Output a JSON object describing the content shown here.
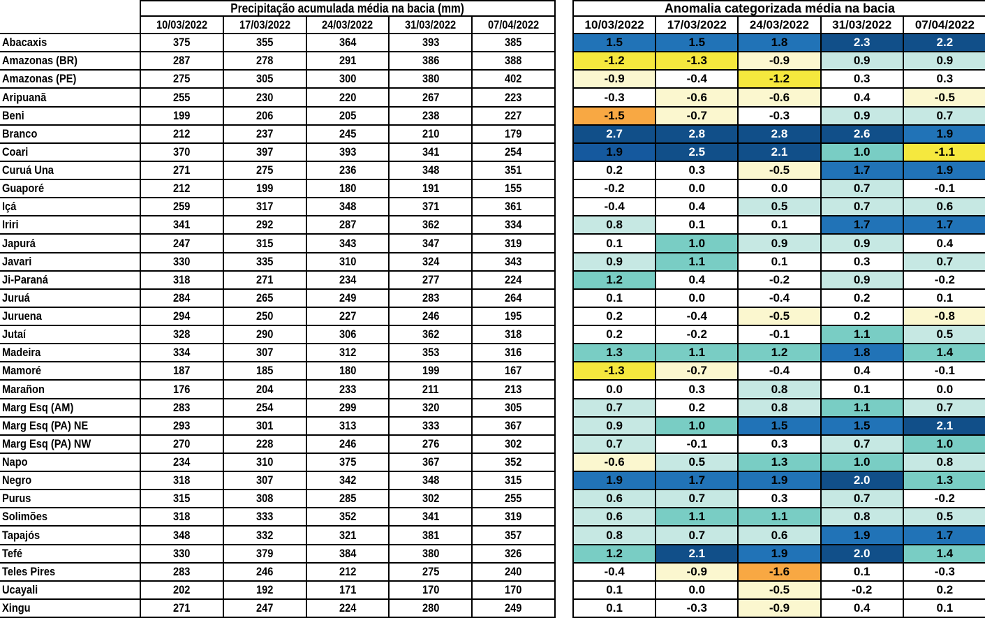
{
  "chart_data": [
    {
      "type": "table",
      "title": "Precipitação acumulada média na bacia (mm)",
      "unit": "mm",
      "columns": [
        "10/03/2022",
        "17/03/2022",
        "24/03/2022",
        "31/03/2022",
        "07/04/2022"
      ],
      "row_labels": [
        "Abacaxis",
        "Amazonas (BR)",
        "Amazonas (PE)",
        "Aripuanã",
        "Beni",
        "Branco",
        "Coari",
        "Curuá Una",
        "Guaporé",
        "Içá",
        "Iriri",
        "Japurá",
        "Javari",
        "Ji-Paraná",
        "Juruá",
        "Juruena",
        "Jutaí",
        "Madeira",
        "Mamoré",
        "Marañon",
        "Marg Esq (AM)",
        "Marg Esq (PA) NE",
        "Marg Esq (PA) NW",
        "Napo",
        "Negro",
        "Purus",
        "Solimões",
        "Tapajós",
        "Tefé",
        "Teles Pires",
        "Ucayali",
        "Xingu"
      ],
      "values": [
        [
          375,
          355,
          364,
          393,
          385
        ],
        [
          287,
          278,
          291,
          386,
          388
        ],
        [
          275,
          305,
          300,
          380,
          402
        ],
        [
          255,
          230,
          220,
          267,
          223
        ],
        [
          199,
          206,
          205,
          238,
          227
        ],
        [
          212,
          237,
          245,
          210,
          179
        ],
        [
          370,
          397,
          393,
          341,
          254
        ],
        [
          271,
          275,
          236,
          348,
          351
        ],
        [
          212,
          199,
          180,
          191,
          155
        ],
        [
          259,
          317,
          348,
          371,
          361
        ],
        [
          341,
          292,
          287,
          362,
          334
        ],
        [
          247,
          315,
          343,
          347,
          319
        ],
        [
          330,
          335,
          310,
          324,
          343
        ],
        [
          318,
          271,
          234,
          277,
          224
        ],
        [
          284,
          265,
          249,
          283,
          264
        ],
        [
          294,
          250,
          227,
          246,
          195
        ],
        [
          328,
          290,
          306,
          362,
          318
        ],
        [
          334,
          307,
          312,
          353,
          316
        ],
        [
          187,
          185,
          180,
          199,
          167
        ],
        [
          176,
          204,
          233,
          211,
          213
        ],
        [
          283,
          254,
          299,
          320,
          305
        ],
        [
          293,
          301,
          313,
          333,
          367
        ],
        [
          270,
          228,
          246,
          276,
          302
        ],
        [
          234,
          310,
          375,
          367,
          352
        ],
        [
          318,
          307,
          342,
          348,
          315
        ],
        [
          315,
          308,
          285,
          302,
          255
        ],
        [
          318,
          333,
          352,
          341,
          319
        ],
        [
          348,
          332,
          321,
          381,
          357
        ],
        [
          330,
          379,
          384,
          380,
          326
        ],
        [
          283,
          246,
          212,
          275,
          240
        ],
        [
          202,
          192,
          171,
          170,
          170
        ],
        [
          271,
          247,
          224,
          280,
          249
        ]
      ]
    },
    {
      "type": "heatmap",
      "title": "Anomalia categorizada média na bacia",
      "columns": [
        "10/03/2022",
        "17/03/2022",
        "24/03/2022",
        "31/03/2022",
        "07/04/2022"
      ],
      "row_labels": [
        "Abacaxis",
        "Amazonas (BR)",
        "Amazonas (PE)",
        "Aripuanã",
        "Beni",
        "Branco",
        "Coari",
        "Curuá Una",
        "Guaporé",
        "Içá",
        "Iriri",
        "Japurá",
        "Javari",
        "Ji-Paraná",
        "Juruá",
        "Juruena",
        "Jutaí",
        "Madeira",
        "Mamoré",
        "Marañon",
        "Marg Esq (AM)",
        "Marg Esq (PA) NE",
        "Marg Esq (PA) NW",
        "Napo",
        "Negro",
        "Purus",
        "Solimões",
        "Tapajós",
        "Tefé",
        "Teles Pires",
        "Ucayali",
        "Xingu"
      ],
      "values": [
        [
          "1.5",
          "1.5",
          "1.8",
          "2.3",
          "2.2"
        ],
        [
          "-1.2",
          "-1.3",
          "-0.9",
          "0.9",
          "0.9"
        ],
        [
          "-0.9",
          "-0.4",
          "-1.2",
          "0.3",
          "0.3"
        ],
        [
          "-0.3",
          "-0.6",
          "-0.6",
          "0.4",
          "-0.5"
        ],
        [
          "-1.5",
          "-0.7",
          "-0.3",
          "0.9",
          "0.7"
        ],
        [
          "2.7",
          "2.8",
          "2.8",
          "2.6",
          "1.9"
        ],
        [
          "1.9",
          "2.5",
          "2.1",
          "1.0",
          "-1.1"
        ],
        [
          "0.2",
          "0.3",
          "-0.5",
          "1.7",
          "1.9"
        ],
        [
          "-0.2",
          "0.0",
          "0.0",
          "0.7",
          "-0.1"
        ],
        [
          "-0.4",
          "0.4",
          "0.5",
          "0.7",
          "0.6"
        ],
        [
          "0.8",
          "0.1",
          "0.1",
          "1.7",
          "1.7"
        ],
        [
          "0.1",
          "1.0",
          "0.9",
          "0.9",
          "0.4"
        ],
        [
          "0.9",
          "1.1",
          "0.1",
          "0.3",
          "0.7"
        ],
        [
          "1.2",
          "0.4",
          "-0.2",
          "0.9",
          "-0.2"
        ],
        [
          "0.1",
          "0.0",
          "-0.4",
          "0.2",
          "0.1"
        ],
        [
          "0.2",
          "-0.4",
          "-0.5",
          "0.2",
          "-0.8"
        ],
        [
          "0.2",
          "-0.2",
          "-0.1",
          "1.1",
          "0.5"
        ],
        [
          "1.3",
          "1.1",
          "1.2",
          "1.8",
          "1.4"
        ],
        [
          "-1.3",
          "-0.7",
          "-0.4",
          "0.4",
          "-0.1"
        ],
        [
          "0.0",
          "0.3",
          "0.8",
          "0.1",
          "0.0"
        ],
        [
          "0.7",
          "0.2",
          "0.8",
          "1.1",
          "0.7"
        ],
        [
          "0.9",
          "1.0",
          "1.5",
          "1.5",
          "2.1"
        ],
        [
          "0.7",
          "-0.1",
          "0.3",
          "0.7",
          "1.0"
        ],
        [
          "-0.6",
          "0.5",
          "1.3",
          "1.0",
          "0.8"
        ],
        [
          "1.9",
          "1.7",
          "1.9",
          "2.0",
          "1.3"
        ],
        [
          "0.6",
          "0.7",
          "0.3",
          "0.7",
          "-0.2"
        ],
        [
          "0.6",
          "1.1",
          "1.1",
          "0.8",
          "0.5"
        ],
        [
          "0.8",
          "0.7",
          "0.6",
          "1.9",
          "1.7"
        ],
        [
          "1.2",
          "2.1",
          "1.9",
          "2.0",
          "1.4"
        ],
        [
          "-0.4",
          "-0.9",
          "-1.6",
          "0.1",
          "-0.3"
        ],
        [
          "0.1",
          "0.0",
          "-0.5",
          "-0.2",
          "0.2"
        ],
        [
          "0.1",
          "-0.3",
          "-0.9",
          "0.4",
          "0.1"
        ]
      ],
      "cell_classes": [
        [
          "b",
          "b",
          "b",
          "n",
          "n"
        ],
        [
          "y",
          "y",
          "py",
          "pt",
          "pt"
        ],
        [
          "py",
          "w",
          "y",
          "w",
          "w"
        ],
        [
          "w",
          "py",
          "py",
          "w",
          "py"
        ],
        [
          "o",
          "py",
          "w",
          "pt",
          "pt"
        ],
        [
          "n",
          "n",
          "n",
          "n",
          "b"
        ],
        [
          "db",
          "n",
          "n",
          "t",
          "y"
        ],
        [
          "w",
          "w",
          "py",
          "b",
          "b"
        ],
        [
          "w",
          "w",
          "w",
          "pt",
          "w"
        ],
        [
          "w",
          "w",
          "pt",
          "pt",
          "pt"
        ],
        [
          "pt",
          "w",
          "w",
          "b",
          "b"
        ],
        [
          "w",
          "t",
          "pt",
          "pt",
          "w"
        ],
        [
          "pt",
          "t",
          "w",
          "w",
          "pt"
        ],
        [
          "t",
          "w",
          "w",
          "pt",
          "w"
        ],
        [
          "w",
          "w",
          "w",
          "w",
          "w"
        ],
        [
          "w",
          "w",
          "py",
          "w",
          "py"
        ],
        [
          "w",
          "w",
          "w",
          "t",
          "pt"
        ],
        [
          "t",
          "t",
          "t",
          "b",
          "t"
        ],
        [
          "y",
          "py",
          "w",
          "w",
          "w"
        ],
        [
          "w",
          "w",
          "pt",
          "w",
          "w"
        ],
        [
          "pt",
          "w",
          "pt",
          "t",
          "pt"
        ],
        [
          "pt",
          "t",
          "b",
          "b",
          "n"
        ],
        [
          "pt",
          "w",
          "w",
          "pt",
          "t"
        ],
        [
          "py",
          "pt",
          "t",
          "t",
          "pt"
        ],
        [
          "b",
          "b",
          "b",
          "n",
          "t"
        ],
        [
          "pt",
          "pt",
          "w",
          "pt",
          "w"
        ],
        [
          "pt",
          "t",
          "t",
          "pt",
          "pt"
        ],
        [
          "pt",
          "pt",
          "pt",
          "b",
          "b"
        ],
        [
          "t",
          "n",
          "b",
          "n",
          "t"
        ],
        [
          "w",
          "py",
          "o",
          "w",
          "w"
        ],
        [
          "w",
          "w",
          "py",
          "w",
          "w"
        ],
        [
          "w",
          "w",
          "py",
          "w",
          "w"
        ]
      ],
      "palette": {
        "o": "#F8A843",
        "y": "#F5E83E",
        "py": "#FBF7CF",
        "w": "#FFFFFF",
        "pt": "#C6E8E3",
        "t": "#79CDC4",
        "b": "#2173B7",
        "db": "#15599E",
        "n": "#114F89"
      },
      "white_text_classes": [
        "n"
      ]
    }
  ]
}
